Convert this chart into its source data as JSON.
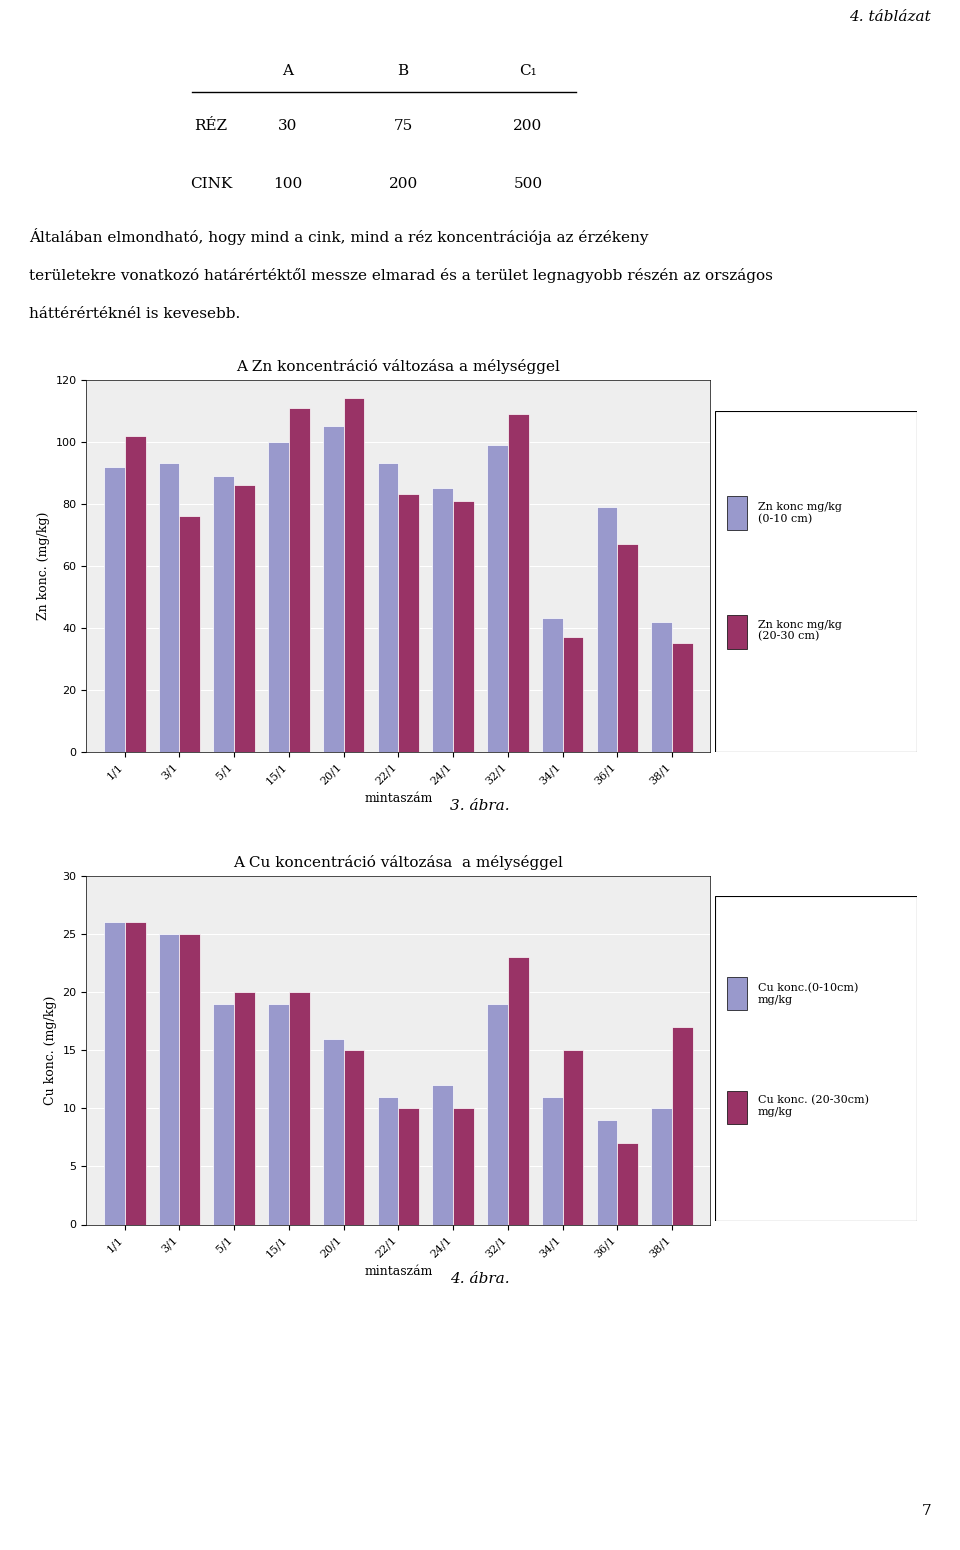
{
  "title_italic": "4. táblázat",
  "table_headers": [
    "A",
    "B",
    "C₁"
  ],
  "table_rows": [
    [
      "RÉZ",
      "30",
      "75",
      "200"
    ],
    [
      "CINK",
      "100",
      "200",
      "500"
    ]
  ],
  "paragraph_lines": [
    "Általában elmondható, hogy mind a cink, mind a réz koncentrációja az érzékeny",
    "területekre vonatkozó határértéktől messze elmarad és a terület legnagyobb részén az országos",
    "háttérértéknél is kevesebb."
  ],
  "chart1_title": "A Zn koncentráció változása a mélységgel",
  "chart1_xlabel": "mintaszám",
  "chart1_ylabel": "Zn konc. (mg/kg)",
  "chart1_ylim": [
    0,
    120
  ],
  "chart1_yticks": [
    0,
    20,
    40,
    60,
    80,
    100,
    120
  ],
  "chart1_categories": [
    "1/1",
    "3/1",
    "5/1",
    "15/1",
    "20/1",
    "22/1",
    "24/1",
    "32/1",
    "34/1",
    "36/1",
    "38/1"
  ],
  "chart1_series1_values": [
    92,
    93,
    89,
    100,
    105,
    93,
    85,
    99,
    43,
    79,
    42
  ],
  "chart1_series2_values": [
    102,
    76,
    86,
    111,
    114,
    83,
    81,
    109,
    37,
    67,
    35
  ],
  "chart1_series1_label": "Zn konc mg/kg\n(0-10 cm)",
  "chart1_series2_label": "Zn konc mg/kg\n(20-30 cm)",
  "chart1_series1_color": "#9999cc",
  "chart1_series2_color": "#993366",
  "chart2_title": "A Cu koncentráció változása  a mélységgel",
  "chart2_xlabel": "mintaszám",
  "chart2_ylabel": "Cu konc. (mg/kg)",
  "chart2_ylim": [
    0,
    30
  ],
  "chart2_yticks": [
    0,
    5,
    10,
    15,
    20,
    25,
    30
  ],
  "chart2_categories": [
    "1/1",
    "3/1",
    "5/1",
    "15/1",
    "20/1",
    "22/1",
    "24/1",
    "32/1",
    "34/1",
    "36/1",
    "38/1"
  ],
  "chart2_series1_values": [
    26,
    25,
    19,
    19,
    16,
    11,
    12,
    19,
    11,
    9,
    10
  ],
  "chart2_series2_values": [
    26,
    25,
    20,
    20,
    15,
    10,
    10,
    23,
    15,
    7,
    17
  ],
  "chart2_series1_label": "Cu konc.(0-10cm)\nmg/kg",
  "chart2_series2_label": "Cu konc. (20-30cm)\nmg/kg",
  "chart2_series1_color": "#9999cc",
  "chart2_series2_color": "#993366",
  "figure3_label": "3. ábra.",
  "figure4_label": "4. ábra.",
  "page_number": "7"
}
